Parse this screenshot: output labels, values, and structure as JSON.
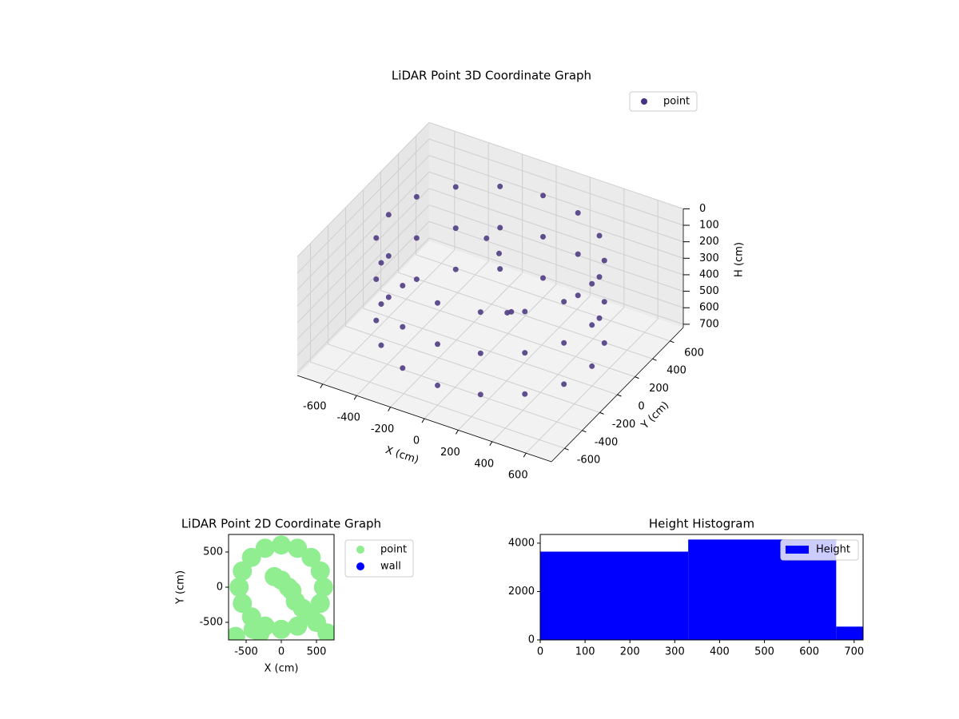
{
  "chart_data": [
    {
      "type": "scatter3d",
      "title": "LiDAR Point 3D Coordinate Graph",
      "x_label": "X (cm)",
      "y_label": "Y (cm)",
      "z_label": "H (cm)",
      "xlim": [
        -750,
        750
      ],
      "ylim": [
        -750,
        750
      ],
      "zlim": [
        0,
        720
      ],
      "z_inverted": true,
      "xticks": [
        -600,
        -400,
        -200,
        0,
        200,
        400,
        600
      ],
      "yticks": [
        -600,
        -400,
        -200,
        0,
        200,
        400,
        600
      ],
      "zticks": [
        0,
        100,
        200,
        300,
        400,
        500,
        600,
        700
      ],
      "grid": true,
      "legend": "upper right",
      "series": [
        {
          "name": "point",
          "color": "#46327e",
          "x": [
            600,
            600,
            600,
            554,
            554,
            554,
            424,
            424,
            424,
            230,
            230,
            230,
            0,
            0,
            0,
            -230,
            -230,
            -230,
            -424,
            -424,
            -424,
            -554,
            -554,
            -554,
            -600,
            -600,
            -600,
            -554,
            -554,
            -554,
            -424,
            -424,
            -424,
            -230,
            -230,
            -230,
            0,
            0,
            0,
            230,
            230,
            230,
            424,
            424,
            424,
            554,
            554,
            554,
            -100,
            0,
            150,
            100
          ],
          "y": [
            0,
            0,
            0,
            230,
            230,
            230,
            424,
            424,
            424,
            554,
            554,
            554,
            600,
            600,
            600,
            554,
            554,
            554,
            424,
            424,
            424,
            230,
            230,
            230,
            0,
            0,
            0,
            -230,
            -230,
            -230,
            -424,
            -424,
            -424,
            -554,
            -554,
            -554,
            -600,
            -600,
            -600,
            -554,
            -554,
            -554,
            -424,
            -424,
            -424,
            -230,
            -230,
            -230,
            150,
            100,
            -50,
            0
          ],
          "z": [
            100,
            350,
            600,
            100,
            350,
            600,
            100,
            350,
            600,
            100,
            350,
            600,
            100,
            350,
            600,
            100,
            350,
            600,
            100,
            350,
            600,
            100,
            350,
            600,
            100,
            350,
            600,
            100,
            350,
            600,
            100,
            350,
            600,
            100,
            350,
            600,
            100,
            350,
            600,
            100,
            350,
            600,
            100,
            350,
            600,
            100,
            350,
            600,
            150,
            180,
            400,
            450
          ]
        }
      ]
    },
    {
      "type": "scatter",
      "title": "LiDAR Point 2D Coordinate Graph",
      "x_label": "X (cm)",
      "y_label": "Y (cm)",
      "xlim": [
        -750,
        750
      ],
      "ylim": [
        -750,
        750
      ],
      "xticks": [
        -500,
        0,
        500
      ],
      "yticks": [
        -500,
        0,
        500
      ],
      "legend": "outside right",
      "series": [
        {
          "name": "point",
          "color": "#90ee90",
          "x": [
            600,
            554,
            424,
            230,
            0,
            -230,
            -424,
            -554,
            -600,
            -554,
            -424,
            -230,
            0,
            230,
            424,
            554,
            -100,
            0,
            150,
            100,
            -400,
            -300,
            300,
            500,
            650,
            200,
            -650
          ],
          "y": [
            0,
            230,
            424,
            554,
            600,
            554,
            424,
            230,
            0,
            -230,
            -424,
            -554,
            -600,
            -554,
            -424,
            -230,
            150,
            100,
            -50,
            0,
            -600,
            -650,
            -300,
            -500,
            -650,
            -200,
            -700
          ]
        },
        {
          "name": "wall",
          "color": "#0000ff",
          "x": [],
          "y": []
        }
      ]
    },
    {
      "type": "histogram",
      "title": "Height Histogram",
      "bins": [
        0,
        330,
        660,
        720
      ],
      "values": [
        3650,
        4150,
        550
      ],
      "color": "#0000ff",
      "name": "Height",
      "xlim": [
        0,
        720
      ],
      "ylim": [
        0,
        4360
      ],
      "xticks": [
        0,
        100,
        200,
        300,
        400,
        500,
        600,
        700
      ],
      "yticks": [
        0,
        2000,
        4000
      ],
      "legend": "upper right"
    }
  ]
}
